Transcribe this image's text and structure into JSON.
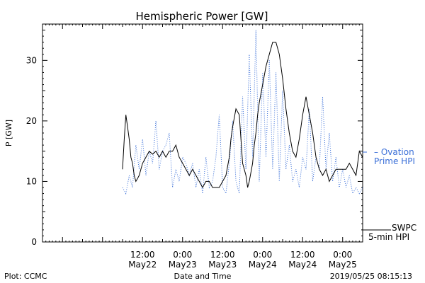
{
  "chart_data": {
    "type": "line",
    "title": "Hemispheric Power [GW]",
    "xlabel": "Date and Time",
    "ylabel": "P [GW]",
    "ylim": [
      0,
      36
    ],
    "yticks": [
      0,
      10,
      20,
      30
    ],
    "xlim": [
      "2019-05-21 06:00",
      "2019-05-25 06:00"
    ],
    "xticks": [
      {
        "time": "2019-05-22 12:00",
        "label1": "12:00",
        "label2": "May22"
      },
      {
        "time": "2019-05-23 00:00",
        "label1": "0:00",
        "label2": "May23"
      },
      {
        "time": "2019-05-23 12:00",
        "label1": "12:00",
        "label2": "May23"
      },
      {
        "time": "2019-05-24 00:00",
        "label1": "0:00",
        "label2": "May24"
      },
      {
        "time": "2019-05-24 12:00",
        "label1": "12:00",
        "label2": "May24"
      },
      {
        "time": "2019-05-25 00:00",
        "label1": "0:00",
        "label2": "May25"
      }
    ],
    "grid": false,
    "legend_position": "right",
    "series": [
      {
        "name": "SWPC 5-min HPI",
        "label_line1": "SWPC",
        "label_line2": "5-min HPI",
        "color": "#000000",
        "style": "solid",
        "x": [
          "2019-05-22 06:00",
          "2019-05-22 06:30",
          "2019-05-22 07:00",
          "2019-05-22 07:30",
          "2019-05-22 08:00",
          "2019-05-22 08:30",
          "2019-05-22 09:00",
          "2019-05-22 09:30",
          "2019-05-22 10:00",
          "2019-05-22 10:30",
          "2019-05-22 11:00",
          "2019-05-22 11:30",
          "2019-05-22 12:00",
          "2019-05-22 13:00",
          "2019-05-22 14:00",
          "2019-05-22 15:00",
          "2019-05-22 16:00",
          "2019-05-22 17:00",
          "2019-05-22 18:00",
          "2019-05-22 19:00",
          "2019-05-22 20:00",
          "2019-05-22 21:00",
          "2019-05-22 22:00",
          "2019-05-22 23:00",
          "2019-05-23 00:00",
          "2019-05-23 01:00",
          "2019-05-23 02:00",
          "2019-05-23 03:00",
          "2019-05-23 04:00",
          "2019-05-23 05:00",
          "2019-05-23 06:00",
          "2019-05-23 07:00",
          "2019-05-23 08:00",
          "2019-05-23 09:00",
          "2019-05-23 10:00",
          "2019-05-23 11:00",
          "2019-05-23 12:00",
          "2019-05-23 13:00",
          "2019-05-23 14:00",
          "2019-05-23 14:30",
          "2019-05-23 15:00",
          "2019-05-23 16:00",
          "2019-05-23 17:00",
          "2019-05-23 18:00",
          "2019-05-23 19:00",
          "2019-05-23 19:30",
          "2019-05-23 20:00",
          "2019-05-23 21:00",
          "2019-05-23 21:30",
          "2019-05-23 22:00",
          "2019-05-23 22:30",
          "2019-05-23 23:00",
          "2019-05-24 00:00",
          "2019-05-24 01:00",
          "2019-05-24 02:00",
          "2019-05-24 03:00",
          "2019-05-24 04:00",
          "2019-05-24 05:00",
          "2019-05-24 06:00",
          "2019-05-24 07:00",
          "2019-05-24 08:00",
          "2019-05-24 09:00",
          "2019-05-24 10:00",
          "2019-05-24 11:00",
          "2019-05-24 12:00",
          "2019-05-24 13:00",
          "2019-05-24 14:00",
          "2019-05-24 15:00",
          "2019-05-24 16:00",
          "2019-05-24 17:00",
          "2019-05-24 18:00",
          "2019-05-24 19:00",
          "2019-05-24 20:00",
          "2019-05-24 21:00",
          "2019-05-24 22:00",
          "2019-05-24 23:00",
          "2019-05-25 00:00",
          "2019-05-25 01:00",
          "2019-05-25 02:00",
          "2019-05-25 03:00",
          "2019-05-25 04:00",
          "2019-05-25 05:00",
          "2019-05-25 06:00"
        ],
        "y": [
          12,
          17,
          21,
          19,
          17,
          14,
          13,
          11,
          10,
          10.5,
          11,
          12,
          13,
          14,
          15,
          14.5,
          15,
          14,
          15,
          14,
          15,
          15,
          16,
          14,
          13,
          12,
          11,
          12,
          11,
          10,
          9,
          10,
          10,
          9,
          9,
          9,
          10,
          11,
          14,
          17,
          19,
          22,
          21,
          13,
          11,
          9,
          10,
          13,
          16,
          18,
          21,
          23,
          26,
          29,
          31,
          33,
          33,
          31,
          27,
          22,
          18,
          15,
          14,
          17,
          21,
          24,
          21,
          18,
          14,
          12,
          11,
          12,
          10,
          11,
          12,
          12,
          12,
          12,
          13,
          12,
          11,
          15,
          14
        ]
      },
      {
        "name": "Ovation Prime HPI",
        "label_line1": "– Ovation",
        "label_line2": "Prime HPI",
        "color": "#3a6fd8",
        "style": "dotted",
        "x": [
          "2019-05-22 06:00",
          "2019-05-22 07:00",
          "2019-05-22 08:00",
          "2019-05-22 09:00",
          "2019-05-22 10:00",
          "2019-05-22 11:00",
          "2019-05-22 12:00",
          "2019-05-22 13:00",
          "2019-05-22 14:00",
          "2019-05-22 15:00",
          "2019-05-22 16:00",
          "2019-05-22 17:00",
          "2019-05-22 18:00",
          "2019-05-22 19:00",
          "2019-05-22 20:00",
          "2019-05-22 21:00",
          "2019-05-22 22:00",
          "2019-05-22 23:00",
          "2019-05-23 00:00",
          "2019-05-23 01:00",
          "2019-05-23 02:00",
          "2019-05-23 03:00",
          "2019-05-23 04:00",
          "2019-05-23 05:00",
          "2019-05-23 06:00",
          "2019-05-23 07:00",
          "2019-05-23 08:00",
          "2019-05-23 09:00",
          "2019-05-23 10:00",
          "2019-05-23 11:00",
          "2019-05-23 12:00",
          "2019-05-23 13:00",
          "2019-05-23 14:00",
          "2019-05-23 15:00",
          "2019-05-23 16:00",
          "2019-05-23 17:00",
          "2019-05-23 18:00",
          "2019-05-23 19:00",
          "2019-05-23 20:00",
          "2019-05-23 21:00",
          "2019-05-23 22:00",
          "2019-05-23 23:00",
          "2019-05-24 00:00",
          "2019-05-24 01:00",
          "2019-05-24 02:00",
          "2019-05-24 03:00",
          "2019-05-24 04:00",
          "2019-05-24 05:00",
          "2019-05-24 06:00",
          "2019-05-24 07:00",
          "2019-05-24 08:00",
          "2019-05-24 09:00",
          "2019-05-24 10:00",
          "2019-05-24 11:00",
          "2019-05-24 12:00",
          "2019-05-24 13:00",
          "2019-05-24 14:00",
          "2019-05-24 15:00",
          "2019-05-24 16:00",
          "2019-05-24 17:00",
          "2019-05-24 18:00",
          "2019-05-24 19:00",
          "2019-05-24 20:00",
          "2019-05-24 21:00",
          "2019-05-24 22:00",
          "2019-05-24 23:00",
          "2019-05-25 00:00",
          "2019-05-25 01:00",
          "2019-05-25 02:00",
          "2019-05-25 03:00",
          "2019-05-25 04:00",
          "2019-05-25 05:00",
          "2019-05-25 06:00"
        ],
        "y": [
          9,
          8,
          11,
          9,
          16,
          12,
          17,
          11,
          15,
          13,
          20,
          12,
          15,
          16,
          18,
          9,
          12,
          10,
          14,
          13,
          11,
          13,
          9,
          12,
          8,
          14,
          9,
          10,
          14,
          21,
          9,
          8,
          13,
          20,
          10,
          8,
          24,
          12,
          31,
          14,
          35,
          10,
          28,
          14,
          30,
          12,
          28,
          10,
          25,
          12,
          16,
          10,
          12,
          9,
          14,
          12,
          22,
          10,
          14,
          12,
          24,
          12,
          18,
          10,
          14,
          9,
          12,
          9,
          11,
          8,
          9,
          8,
          9
        ]
      }
    ]
  },
  "footer": {
    "left": "Plot: CCMC",
    "right": "2019/05/25 08:15:13"
  }
}
